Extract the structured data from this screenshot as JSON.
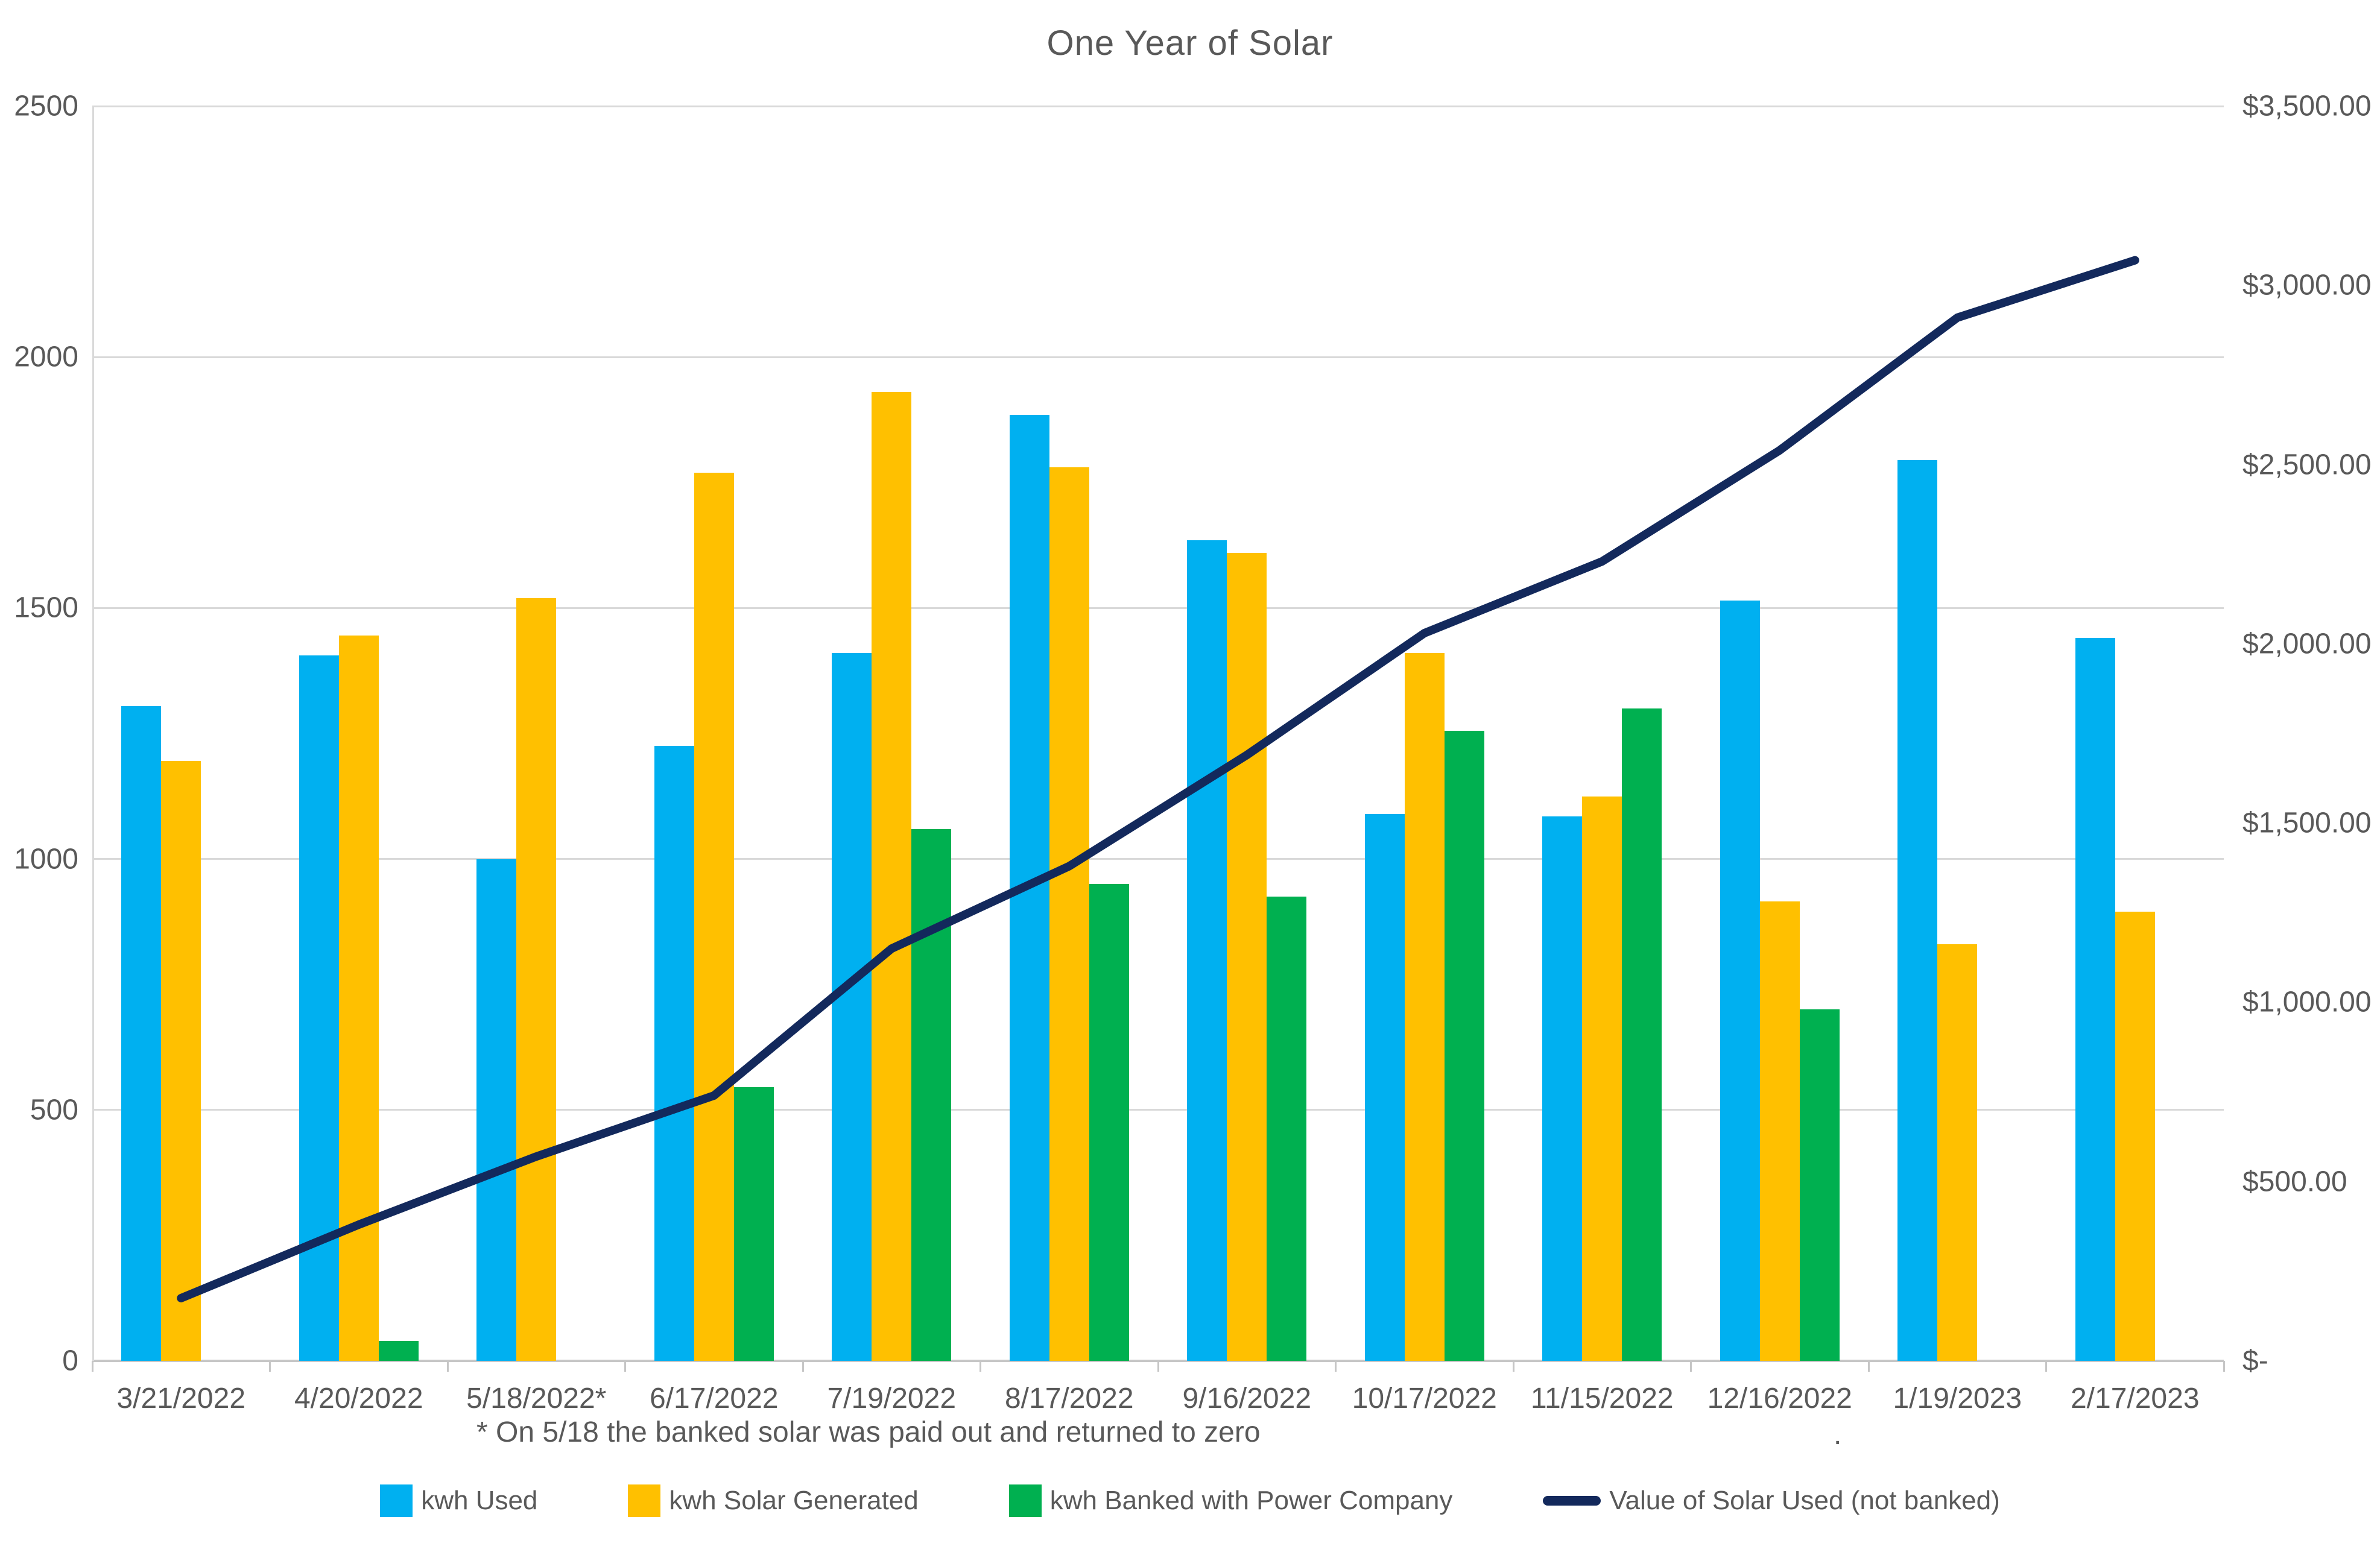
{
  "title": "One Year of Solar",
  "footnote": "* On 5/18 the banked solar was paid out and returned to zero",
  "stray_dot": ".",
  "colors": {
    "kwh_used": "#00B0F0",
    "kwh_solar_generated": "#FFC000",
    "kwh_banked": "#00B050",
    "value_line": "#13295C",
    "axis_text": "#595959",
    "gridline": "#D9D9D9"
  },
  "chart_data": {
    "type": "combo",
    "categories": [
      "3/21/2022",
      "4/20/2022",
      "5/18/2022*",
      "6/17/2022",
      "7/19/2022",
      "8/17/2022",
      "9/16/2022",
      "10/17/2022",
      "11/15/2022",
      "12/16/2022",
      "1/19/2023",
      "2/17/2023"
    ],
    "series": [
      {
        "name": "kwh Used",
        "type": "bar",
        "color_key": "kwh_used",
        "values": [
          1305,
          1405,
          1000,
          1225,
          1410,
          1885,
          1635,
          1090,
          1085,
          1515,
          1795,
          1440
        ]
      },
      {
        "name": "kwh Solar Generated",
        "type": "bar",
        "color_key": "kwh_solar_generated",
        "values": [
          1195,
          1445,
          1520,
          1770,
          1930,
          1780,
          1610,
          1410,
          1125,
          915,
          830,
          895
        ]
      },
      {
        "name": "kwh Banked with Power Company",
        "type": "bar",
        "color_key": "kwh_banked",
        "values": [
          null,
          40,
          null,
          545,
          1060,
          950,
          925,
          1255,
          1300,
          700,
          null,
          null
        ]
      },
      {
        "name": "Value of Solar Used (not banked)",
        "type": "line",
        "axis": "right",
        "color_key": "value_line",
        "values_usd": [
          175,
          380,
          570,
          740,
          1150,
          1380,
          1690,
          2030,
          2230,
          2540,
          2910,
          3070
        ]
      }
    ],
    "left_axis": {
      "ticks": [
        0,
        500,
        1000,
        1500,
        2000,
        2500
      ],
      "max": 2500
    },
    "right_axis": {
      "tick_labels": [
        "$-",
        "$500.00",
        "$1,000.00",
        "$1,500.00",
        "$2,000.00",
        "$2,500.00",
        "$3,000.00",
        "$3,500.00"
      ],
      "tick_values": [
        0,
        500,
        1000,
        1500,
        2000,
        2500,
        3000,
        3500
      ],
      "max": 3500
    },
    "grid": true,
    "legend_position": "bottom"
  },
  "legend": {
    "items": [
      {
        "label": "kwh Used",
        "marker": "square",
        "color_key": "kwh_used"
      },
      {
        "label": "kwh Solar Generated",
        "marker": "square",
        "color_key": "kwh_solar_generated"
      },
      {
        "label": "kwh Banked with Power Company",
        "marker": "square",
        "color_key": "kwh_banked"
      },
      {
        "label": "Value of Solar Used (not banked)",
        "marker": "line",
        "color_key": "value_line"
      }
    ]
  }
}
